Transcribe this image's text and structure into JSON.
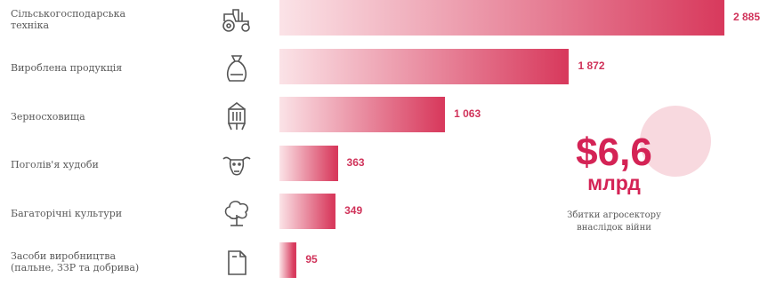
{
  "chart_data": {
    "type": "bar",
    "orientation": "horizontal",
    "categories": [
      "Сільськогосподарська\nтехніка",
      "Вироблена продукція",
      "Зерносховища",
      "Поголів'я худоби",
      "Багаторічні культури",
      "Засоби виробництва\n(пальне, ЗЗР та добрива)"
    ],
    "icons": [
      "tractor-icon",
      "sack-icon",
      "granary-icon",
      "cow-icon",
      "tree-icon",
      "canister-icon"
    ],
    "values": [
      2885,
      1872,
      1063,
      363,
      349,
      95
    ],
    "value_labels": [
      "2 885",
      "1 872",
      "1 063",
      "363",
      "349",
      "95"
    ],
    "bar_color_start": "#fbe3e7",
    "bar_color_end": "#d83a5d",
    "label_color": "#d0335a"
  },
  "summary": {
    "amount": "$6,6",
    "unit": "млрд",
    "caption": "Збитки агросектору\nвнаслідок війни",
    "accent": "#d42355",
    "circle_color": "#f8d9df"
  }
}
